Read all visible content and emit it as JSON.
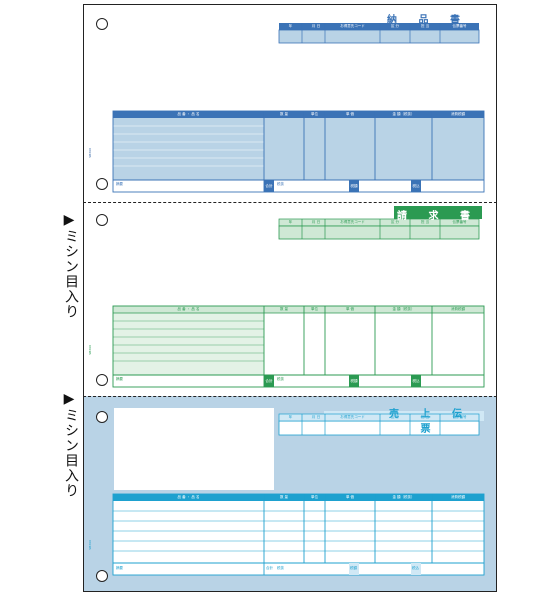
{
  "colors": {
    "blue": "#3b73b6",
    "blue_fill": "#b9d3e6",
    "green": "#2b9a52",
    "green_fill": "#cfe8d5",
    "teal": "#1ea1cf",
    "teal_fill": "#d0e8f5"
  },
  "side_labels": [
    {
      "arrow": "▶",
      "text": "ミシン目入り"
    },
    {
      "arrow": "▶",
      "text": "ミシン目入り"
    }
  ],
  "sections": [
    {
      "title": "納 品 書",
      "header_cols": [
        "年",
        "月",
        "日",
        "お得意先コード",
        "区 分",
        "担 当",
        "伝票番号"
      ],
      "table_cols": [
        "品 番 ・ 品 名",
        "数 量",
        "単位",
        "単 価",
        "金 額（税抜）",
        "消費税額"
      ],
      "footer": [
        "摘要",
        "合計",
        "税抜",
        "税額",
        "税込"
      ],
      "code": "SB360"
    },
    {
      "title": "請 求 書",
      "header_cols": [
        "年",
        "月",
        "日",
        "お得意先コード",
        "区 分",
        "担 当",
        "伝票番号"
      ],
      "table_cols": [
        "品 番 ・ 品 名",
        "数 量",
        "単位",
        "単 価",
        "金 額（税抜）",
        "消費税額"
      ],
      "footer": [
        "摘要",
        "合計",
        "税抜",
        "税額",
        "税込"
      ],
      "code": "SB360"
    },
    {
      "title": "売 上 伝 票",
      "header_cols": [
        "年",
        "月",
        "日",
        "お得意先コード",
        "区 分",
        "担 当",
        "伝票番号"
      ],
      "table_cols": [
        "品 番 ・ 品 名",
        "数 量",
        "単位",
        "単 価",
        "金 額（税抜）",
        "消費税額"
      ],
      "footer": [
        "摘要",
        "合計",
        "税抜",
        "税額",
        "税込"
      ],
      "code": "SB360"
    }
  ]
}
